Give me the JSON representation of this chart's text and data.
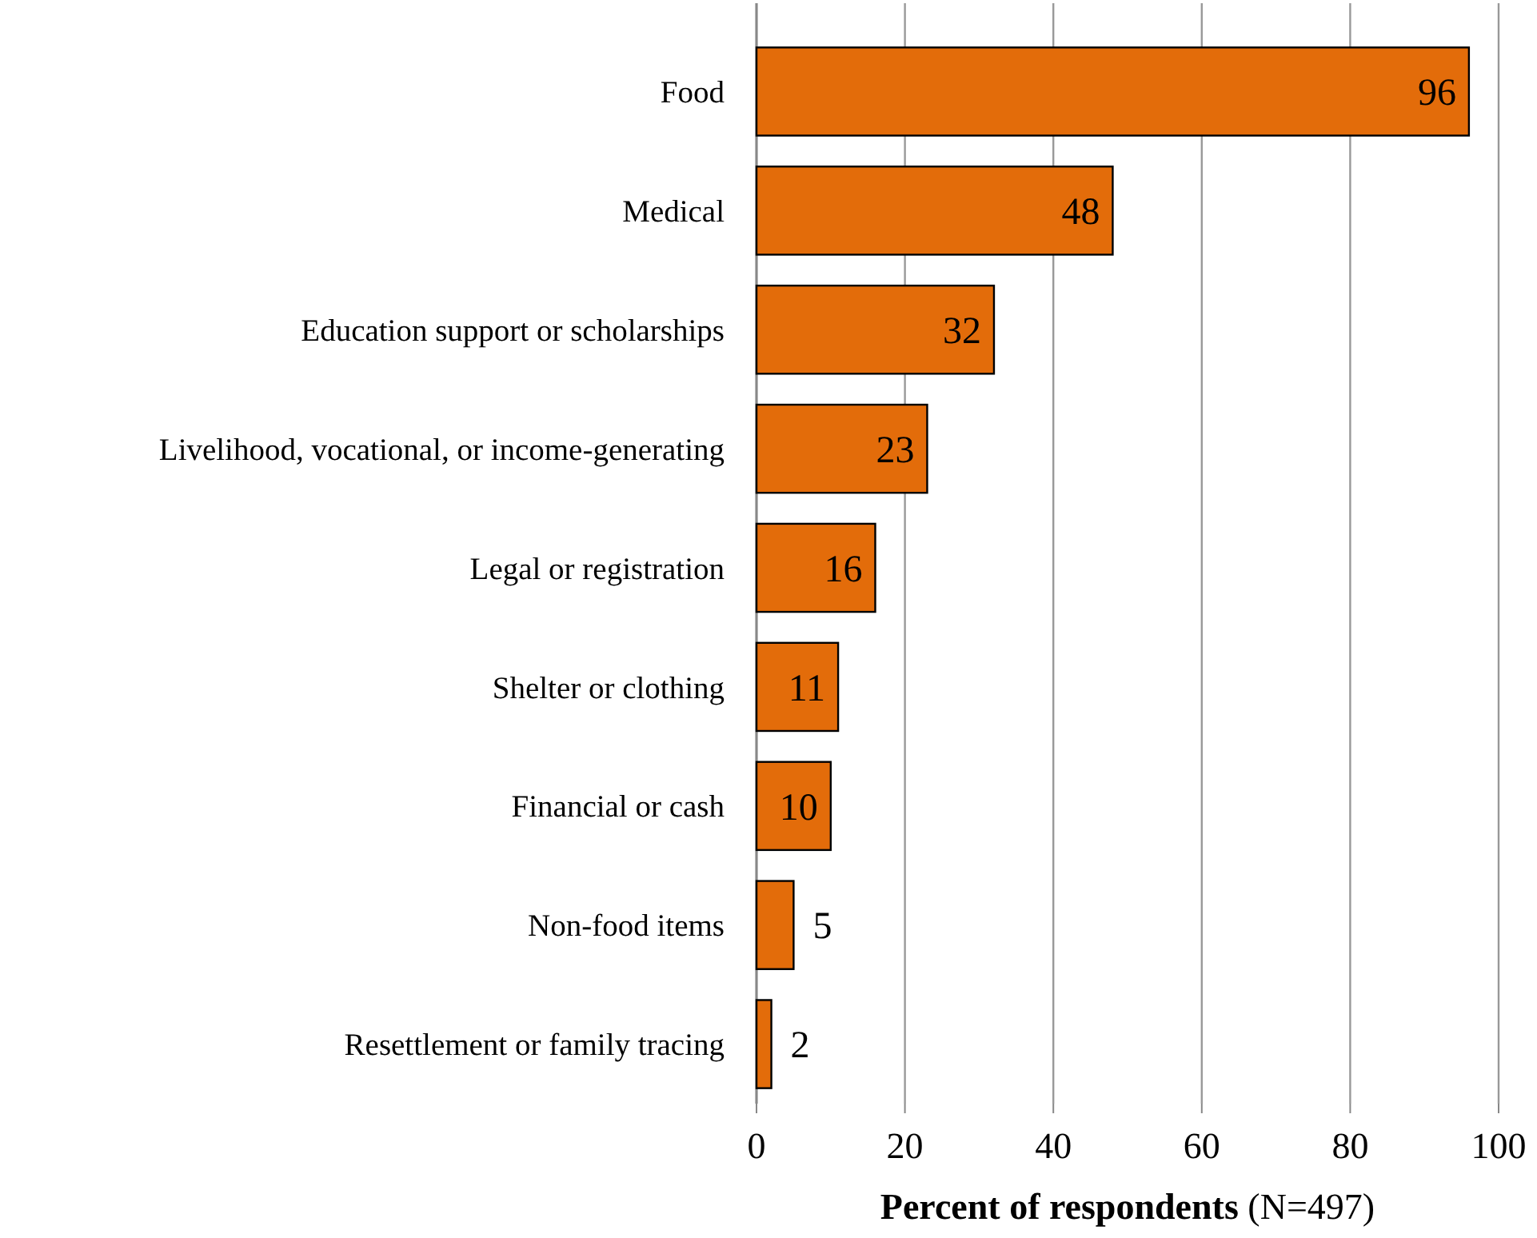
{
  "chart_data": {
    "type": "bar",
    "orientation": "horizontal",
    "xlabel": "Percent of respondents (N=497)",
    "categories": [
      "Food",
      "Medical",
      "Education support or scholarships",
      "Livelihood, vocational, or income-generating",
      "Legal or registration",
      "Shelter or clothing",
      "Financial or cash",
      "Non-food items",
      "Resettlement or family tracing"
    ],
    "values": [
      96,
      48,
      32,
      23,
      16,
      11,
      10,
      5,
      2
    ],
    "color": "#e36c0a",
    "xlim": [
      0,
      100
    ],
    "xticks": [
      0,
      20,
      40,
      60,
      80,
      100
    ],
    "grid": "x",
    "data_labels": true
  }
}
